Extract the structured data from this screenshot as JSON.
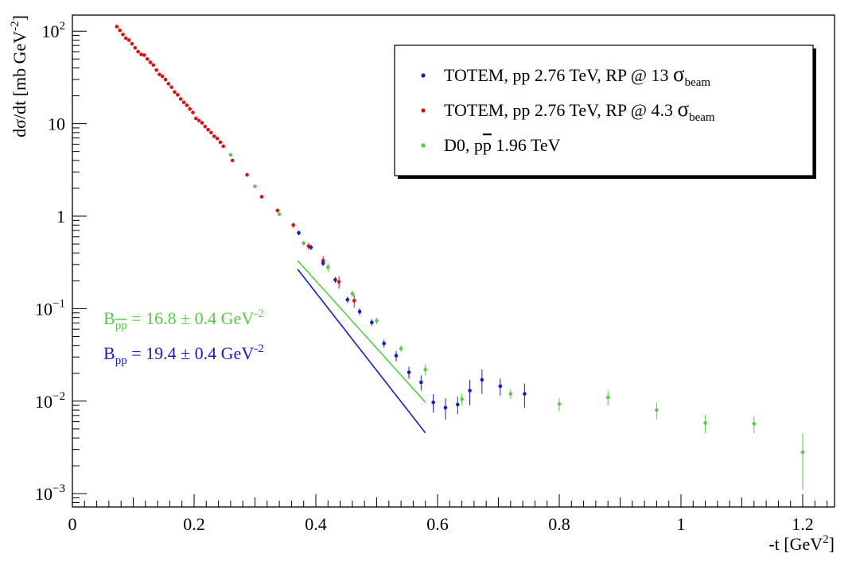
{
  "chart_data": {
    "type": "scatter",
    "title": "",
    "xlabel": "-t [GeV",
    "xlabel_sup": "2",
    "xlabel_close": "]",
    "ylabel": "dσ/dt [mb GeV",
    "ylabel_sup": "-2",
    "ylabel_close": "]",
    "xlim": [
      0,
      1.25
    ],
    "ylim": [
      0.0007,
      150
    ],
    "yscale": "log",
    "x_tick_labels": [
      "0",
      "0.2",
      "0.4",
      "0.6",
      "0.8",
      "1",
      "1.2"
    ],
    "x_ticks": [
      0,
      0.2,
      0.4,
      0.6,
      0.8,
      1.0,
      1.2
    ],
    "y_ticks": [
      {
        "value": 100,
        "base": "10",
        "exp": "2"
      },
      {
        "value": 10,
        "base": "10",
        "exp": ""
      },
      {
        "value": 1,
        "base": "1",
        "exp": ""
      },
      {
        "value": 0.1,
        "base": "10",
        "exp": "−1"
      },
      {
        "value": 0.01,
        "base": "10",
        "exp": "−2"
      },
      {
        "value": 0.001,
        "base": "10",
        "exp": "−3"
      }
    ],
    "legend": {
      "position": "top-right",
      "entries": [
        {
          "series": "totem13",
          "prefix": "TOTEM, pp 2.76 TeV, RP @ 13 ",
          "sym": "σ",
          "sub": "beam"
        },
        {
          "series": "totem43",
          "prefix": "TOTEM, pp 2.76 TeV, RP @ 4.3 ",
          "sym": "σ",
          "sub": "beam"
        },
        {
          "series": "d0",
          "prefix": "D0, p",
          "pbar": "p",
          "suffix": " 1.96 TeV"
        }
      ]
    },
    "annotations": [
      {
        "id": "b_ppbar",
        "color": "#55cc44",
        "B": "B",
        "sub": "pp",
        "sub_bar": true,
        "text": " = 16.8 ± 0.4 GeV",
        "sup": "-2"
      },
      {
        "id": "b_pp",
        "color": "#1a1acc",
        "B": "B",
        "sub": "pp",
        "sub_bar": false,
        "text": " = 19.4 ± 0.4 GeV",
        "sup": "-2"
      }
    ],
    "fits": [
      {
        "series": "d0",
        "color": "#55cc44",
        "x": [
          0.37,
          0.58
        ],
        "A": 166,
        "B": 16.8
      },
      {
        "series": "totem13",
        "color": "#1a1acc",
        "x": [
          0.37,
          0.58
        ],
        "A": 350,
        "B": 19.4
      }
    ],
    "series": [
      {
        "name": "TOTEM, pp 2.76 TeV, RP @ 13 σbeam",
        "id": "totem13",
        "color": "#1a1acc",
        "x": [
          0.372,
          0.392,
          0.412,
          0.432,
          0.452,
          0.472,
          0.492,
          0.512,
          0.532,
          0.553,
          0.573,
          0.593,
          0.613,
          0.633,
          0.653,
          0.673,
          0.703,
          0.743
        ],
        "y": [
          0.66,
          0.46,
          0.31,
          0.205,
          0.125,
          0.093,
          0.071,
          0.042,
          0.031,
          0.0205,
          0.016,
          0.0097,
          0.0085,
          0.0092,
          0.013,
          0.017,
          0.0145,
          0.012
        ],
        "err": [
          0.04,
          0.03,
          0.02,
          0.015,
          0.01,
          0.008,
          0.006,
          0.004,
          0.004,
          0.003,
          0.003,
          0.0022,
          0.0022,
          0.002,
          0.004,
          0.005,
          0.003,
          0.0035
        ]
      },
      {
        "name": "TOTEM, pp 2.76 TeV, RP @ 4.3 σbeam",
        "id": "totem43",
        "color": "#e01010",
        "x": [
          0.073,
          0.078,
          0.083,
          0.088,
          0.093,
          0.098,
          0.103,
          0.108,
          0.113,
          0.118,
          0.123,
          0.128,
          0.133,
          0.138,
          0.143,
          0.148,
          0.153,
          0.158,
          0.163,
          0.168,
          0.173,
          0.178,
          0.183,
          0.188,
          0.193,
          0.198,
          0.203,
          0.208,
          0.213,
          0.218,
          0.223,
          0.228,
          0.233,
          0.238,
          0.243,
          0.248,
          0.263,
          0.287,
          0.311,
          0.337,
          0.363,
          0.388,
          0.412,
          0.438,
          0.463
        ],
        "y": [
          112,
          102,
          92,
          84,
          80,
          73,
          66,
          60,
          56,
          55,
          50,
          46,
          43,
          38,
          34,
          32.5,
          30,
          27,
          24.8,
          22,
          20.5,
          18.5,
          17,
          15.8,
          14.4,
          13.2,
          11.4,
          10.8,
          10.2,
          9.3,
          8.6,
          8.0,
          7.3,
          6.9,
          6.3,
          5.7,
          4.0,
          2.8,
          1.62,
          1.15,
          0.8,
          0.475,
          0.33,
          0.195,
          0.122
        ],
        "err": [
          0,
          0,
          0,
          0,
          0,
          0,
          0,
          0,
          0,
          0,
          0,
          0,
          0,
          0,
          0,
          0,
          0,
          0,
          0,
          0,
          0,
          0,
          0,
          0,
          0,
          0,
          0,
          0,
          0,
          0,
          0,
          0,
          0,
          0,
          0,
          0,
          0,
          0,
          0,
          0,
          0.05,
          0.04,
          0.04,
          0.03,
          0.02
        ]
      },
      {
        "name": "D0, pp̄ 1.96 TeV",
        "id": "d0",
        "color": "#55cc44",
        "x": [
          0.26,
          0.3,
          0.34,
          0.38,
          0.42,
          0.46,
          0.5,
          0.54,
          0.58,
          0.64,
          0.72,
          0.8,
          0.88,
          0.96,
          1.04,
          1.12,
          1.2
        ],
        "y": [
          4.6,
          2.1,
          1.05,
          0.51,
          0.28,
          0.145,
          0.074,
          0.037,
          0.022,
          0.0105,
          0.012,
          0.0093,
          0.011,
          0.008,
          0.0058,
          0.0057,
          0.0028
        ],
        "err": [
          0,
          0,
          0,
          0.03,
          0.03,
          0.012,
          0.006,
          0.003,
          0.003,
          0.0015,
          0.0015,
          0.0015,
          0.002,
          0.0016,
          0.0013,
          0.0012,
          0.0017
        ]
      }
    ]
  }
}
